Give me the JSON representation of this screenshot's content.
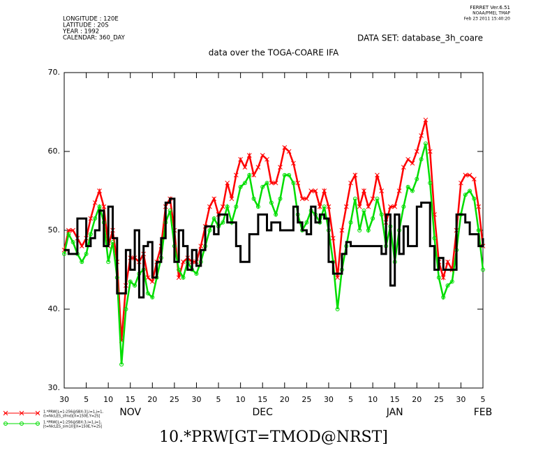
{
  "chart_data": {
    "type": "line",
    "header_left": [
      "LONGITUDE : 120E",
      "LATITUDE : 20S",
      "YEAR : 1992",
      "CALENDAR: 360_DAY"
    ],
    "header_right": [
      "FERRET  Ver.6.51",
      "NOAA/PMEL TMAP",
      "Feb 23 2011 15:40:20"
    ],
    "dataset": "DATA SET: database_3h_coare",
    "title": "data over the TOGA-COARE IFA",
    "xlabel": "10.*PRW[GT=TMOD@NRST]",
    "xlim": [
      0,
      95
    ],
    "ylim": [
      30,
      70
    ],
    "yticks": [
      {
        "value": 30,
        "label": "30."
      },
      {
        "value": 40,
        "label": "40."
      },
      {
        "value": 50,
        "label": "50."
      },
      {
        "value": 60,
        "label": "60."
      },
      {
        "value": 70,
        "label": "70."
      }
    ],
    "xticks": [
      {
        "value": 0,
        "label": "30"
      },
      5,
      10,
      15,
      20,
      25,
      30,
      {
        "value": 35,
        "label": "5"
      },
      {
        "value": 40,
        "label": "10"
      },
      {
        "value": 45,
        "label": "15"
      },
      {
        "value": 50,
        "label": "20"
      },
      {
        "value": 55,
        "label": "25"
      },
      {
        "value": 60,
        "label": "30"
      },
      {
        "value": 65,
        "label": "5"
      },
      {
        "value": 70,
        "label": "10"
      },
      {
        "value": 75,
        "label": "15"
      },
      {
        "value": 80,
        "label": "20"
      },
      {
        "value": 85,
        "label": "25"
      },
      {
        "value": 90,
        "label": "30"
      },
      {
        "value": 95,
        "label": "5"
      }
    ],
    "month_ticks": [
      {
        "value": 15,
        "label": "NOV"
      },
      {
        "value": 45,
        "label": "DEC"
      },
      {
        "value": 75,
        "label": "JAN"
      },
      {
        "value": 95,
        "label": "FEB"
      }
    ],
    "x": [
      0,
      1,
      2,
      3,
      4,
      5,
      6,
      7,
      8,
      9,
      10,
      11,
      12,
      13,
      14,
      15,
      16,
      17,
      18,
      19,
      20,
      21,
      22,
      23,
      24,
      25,
      26,
      27,
      28,
      29,
      30,
      31,
      32,
      33,
      34,
      35,
      36,
      37,
      38,
      39,
      40,
      41,
      42,
      43,
      44,
      45,
      46,
      47,
      48,
      49,
      50,
      51,
      52,
      53,
      54,
      55,
      56,
      57,
      58,
      59,
      60,
      61,
      62,
      63,
      64,
      65,
      66,
      67,
      68,
      69,
      70,
      71,
      72,
      73,
      74,
      75,
      76,
      77,
      78,
      79,
      80,
      81,
      82,
      83,
      84,
      85,
      86,
      87,
      88,
      89,
      90,
      91,
      92,
      93,
      94,
      95
    ],
    "series": [
      {
        "name": [
          "1.*PRW[L=1:256@SBX:3],i=1,j=1,",
          "(t=NicLES_sfmd)[X=150E,Y=2S]"
        ],
        "color": "#ff0000",
        "marker": "x",
        "step": false,
        "values": [
          47.5,
          50,
          50,
          49,
          48,
          49,
          51.5,
          53.5,
          55,
          53,
          48,
          50,
          46,
          36,
          43,
          46.5,
          46.5,
          46,
          47,
          44,
          43.5,
          46,
          48,
          53,
          54,
          50,
          44,
          46,
          46.5,
          46,
          46,
          48,
          50.5,
          53,
          54,
          52,
          53,
          56,
          54,
          57,
          59,
          58,
          59.5,
          57,
          58,
          59.5,
          59,
          56,
          56,
          58,
          60.5,
          60,
          58.5,
          56,
          54,
          54,
          55,
          55,
          53,
          55,
          53,
          49,
          44,
          50,
          53,
          56,
          57,
          53,
          55,
          53,
          54,
          57,
          55,
          51,
          53,
          53,
          55,
          58,
          59,
          58.5,
          60,
          62,
          64,
          60,
          52,
          46,
          44,
          46,
          45,
          50,
          56,
          57,
          57,
          56.5,
          53,
          48
        ]
      },
      {
        "name": [
          "1.*PRW[L=1:256@SBX:3,i=1,j=1,",
          "[t=NicLES_sim10][X=150E,Y=2S]"
        ],
        "color": "#00dd00",
        "marker": "o",
        "step": false,
        "values": [
          47,
          49.5,
          48.5,
          47,
          46,
          47,
          49.5,
          51.5,
          53,
          51,
          46,
          48.5,
          44,
          33,
          40,
          43.5,
          43,
          44.5,
          45,
          42,
          41.5,
          44,
          46.5,
          51,
          52.5,
          48,
          45,
          44,
          46,
          45,
          44.5,
          46,
          48,
          50,
          51.5,
          50.5,
          51,
          53,
          51,
          53,
          55.5,
          56,
          57,
          54,
          53,
          55.5,
          56,
          53.5,
          52,
          54,
          57,
          57,
          56,
          52,
          50,
          51,
          52.5,
          52,
          51,
          53,
          50,
          46,
          40,
          45,
          48,
          51,
          54,
          50,
          52.5,
          50,
          51.5,
          54,
          52,
          48,
          50.5,
          46,
          50,
          53,
          55.5,
          55,
          56.5,
          59,
          61,
          56,
          49,
          44,
          41.5,
          43,
          43.5,
          47.5,
          52,
          54.5,
          55,
          54,
          50,
          45
        ]
      },
      {
        "color": "#000000",
        "marker": "none",
        "step": true,
        "values": [
          47.5,
          47,
          47,
          51.5,
          51.5,
          48,
          49,
          50,
          52.5,
          48,
          53,
          49,
          42,
          42,
          47.5,
          45,
          50,
          41.5,
          48,
          48.5,
          44,
          46,
          49,
          53.5,
          54,
          46,
          50,
          48,
          45,
          47.5,
          45.5,
          47.5,
          50.5,
          50.5,
          49.5,
          52,
          52,
          51,
          51,
          48,
          46,
          46,
          49.5,
          49.5,
          52,
          52,
          50,
          51,
          51,
          50,
          50,
          50,
          53,
          51,
          50,
          49.5,
          53,
          51,
          52,
          51.5,
          46,
          44.5,
          44.5,
          47,
          48.5,
          48,
          48,
          48,
          48,
          48,
          48,
          48,
          47,
          52,
          43,
          52,
          47,
          50.5,
          48,
          48,
          53,
          53.5,
          53.5,
          48,
          45,
          46.5,
          45,
          45,
          45,
          52,
          52,
          51,
          49.5,
          49.5,
          48,
          49
        ]
      }
    ]
  }
}
